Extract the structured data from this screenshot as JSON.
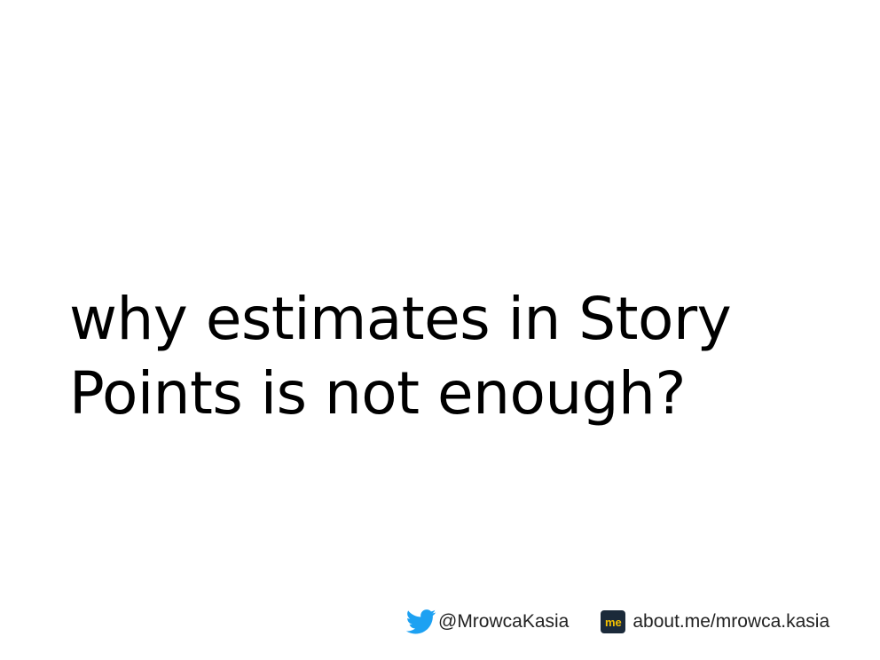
{
  "slide": {
    "title_lines": [
      "why estimates in Story",
      "Points is not enough?"
    ]
  },
  "footer": {
    "twitter_icon": "twitter-bird-icon",
    "twitter_handle": "@MrowcaKasia",
    "aboutme_icon": "about-me-icon",
    "aboutme_icon_text": "me",
    "aboutme_url": "about.me/mrowca.kasia"
  },
  "colors": {
    "background": "#ffffff",
    "text": "#000000",
    "footer_text": "#222222",
    "twitter_blue": "#1DA1F2",
    "aboutme_bg": "#1b2a3a",
    "aboutme_text": "#f5c200"
  }
}
